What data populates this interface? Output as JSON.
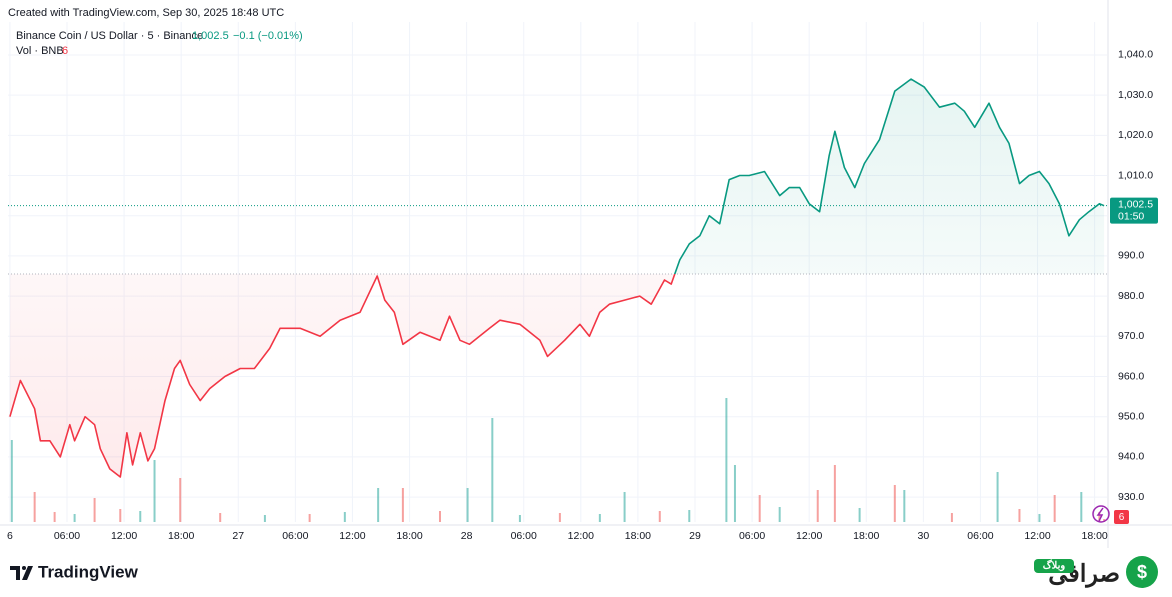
{
  "header": {
    "created": "Created with TradingView.com, Sep 30, 2025 18:48 UTC",
    "symbol": "Binance Coin / US Dollar · 5 · Binance",
    "price": "1,002.5",
    "change": "−0.1 (−0.01%)",
    "vol_label": "Vol · BNB",
    "vol_value": "6"
  },
  "chart_data": {
    "type": "baseline",
    "x": [
      0,
      1.1,
      2.6,
      3.2,
      4.2,
      5.3,
      6.3,
      6.8,
      7.9,
      8.9,
      9.5,
      10.5,
      11.6,
      12.3,
      12.9,
      13.7,
      14.5,
      15.2,
      16.3,
      17.3,
      17.9,
      18.9,
      20.0,
      21.0,
      22.6,
      24.2,
      25.7,
      27.3,
      28.4,
      30.5,
      32.6,
      34.7,
      36.8,
      38.6,
      39.4,
      40.4,
      41.3,
      43.1,
      45.2,
      46.2,
      47.3,
      48.3,
      50.4,
      51.5,
      53.6,
      55.7,
      56.5,
      58.3,
      59.9,
      60.9,
      62.0,
      63.0,
      64.6,
      66.2,
      67.4,
      68.8,
      69.5,
      70.4,
      71.4,
      72.5,
      73.5,
      74.6,
      75.6,
      76.7,
      77.7,
      79.3,
      80.9,
      81.9,
      83.0,
      84.0,
      85.1,
      86.1,
      86.7,
      87.7,
      88.8,
      89.8,
      91.4,
      93.0,
      94.7,
      96.1,
      97.7,
      99.3,
      100.3,
      101.4,
      102.9,
      104.0,
      105.0,
      106.1,
      107.1,
      108.2,
      109.2,
      110.3,
      111.3,
      112.4,
      113.4,
      114.5,
      115.0
    ],
    "values": [
      950,
      959,
      952,
      944,
      944,
      940,
      948,
      944,
      950,
      948,
      942,
      937,
      935,
      946,
      938,
      946,
      939,
      942,
      954,
      962,
      964,
      958,
      954,
      957,
      960,
      962,
      962,
      967,
      972,
      972,
      970,
      974,
      976,
      985,
      979,
      976,
      968,
      971,
      969,
      975,
      969,
      968,
      972,
      974,
      973,
      969,
      965,
      969,
      973,
      970,
      976,
      978,
      979,
      980,
      978,
      984,
      983,
      989,
      993,
      995,
      1000,
      998,
      1009,
      1010,
      1010,
      1011,
      1005,
      1007,
      1007,
      1003,
      1001,
      1015,
      1021,
      1012,
      1007,
      1013,
      1019,
      1031,
      1034,
      1032,
      1027,
      1028,
      1026,
      1022,
      1028,
      1022,
      1018,
      1008,
      1010,
      1011,
      1008,
      1003,
      995,
      999,
      1001,
      1003,
      1002.5
    ],
    "baseline": 985.5,
    "colors": {
      "up": "#089981",
      "down": "#f23645"
    },
    "xlim": [
      -0.2,
      115.3
    ],
    "ylim": [
      923.8,
      1048.2
    ],
    "xticks": [
      {
        "value": 0,
        "label": "6"
      },
      {
        "value": 6,
        "label": "06:00"
      },
      {
        "value": 12,
        "label": "12:00"
      },
      {
        "value": 18,
        "label": "18:00"
      },
      {
        "value": 24,
        "label": "27"
      },
      {
        "value": 30,
        "label": "06:00"
      },
      {
        "value": 36,
        "label": "12:00"
      },
      {
        "value": 42,
        "label": "18:00"
      },
      {
        "value": 48,
        "label": "28"
      },
      {
        "value": 54,
        "label": "06:00"
      },
      {
        "value": 60,
        "label": "12:00"
      },
      {
        "value": 66,
        "label": "18:00"
      },
      {
        "value": 72,
        "label": "29"
      },
      {
        "value": 78,
        "label": "06:00"
      },
      {
        "value": 84,
        "label": "12:00"
      },
      {
        "value": 90,
        "label": "18:00"
      },
      {
        "value": 96,
        "label": "30"
      },
      {
        "value": 102,
        "label": "06:00"
      },
      {
        "value": 108,
        "label": "12:00"
      },
      {
        "value": 114,
        "label": "18:00"
      }
    ],
    "yticks": [
      {
        "value": 930,
        "label": "930.0"
      },
      {
        "value": 940,
        "label": "940.0"
      },
      {
        "value": 950,
        "label": "950.0"
      },
      {
        "value": 960,
        "label": "960.0"
      },
      {
        "value": 970,
        "label": "970.0"
      },
      {
        "value": 980,
        "label": "980.0"
      },
      {
        "value": 990,
        "label": "990.0"
      },
      {
        "value": 1000,
        "label": "1,000.0"
      },
      {
        "value": 1010,
        "label": "1,010.0"
      },
      {
        "value": 1020,
        "label": "1,020.0"
      },
      {
        "value": 1030,
        "label": "1,030.0"
      },
      {
        "value": 1040,
        "label": "1,040.0"
      }
    ],
    "grid": true,
    "last": {
      "value": 1002.5,
      "label": "1,002.5",
      "countdown": "01:50"
    },
    "volume": {
      "ylim": [
        0,
        400
      ],
      "x": [
        0.2,
        2.6,
        8.9,
        15.2,
        17.9,
        38.7,
        41.3,
        48.1,
        50.7,
        64.6,
        75.3,
        76.2,
        78.8,
        84.9,
        86.7,
        93.0,
        94.0,
        103.8,
        109.8,
        112.6,
        4.7,
        6.8,
        11.6,
        13.7,
        22.1,
        26.8,
        31.5,
        35.2,
        45.2,
        53.6,
        57.8,
        62.0,
        68.3,
        71.4,
        80.9,
        89.3,
        99.0,
        106.1,
        108.2,
        114.5,
        115.0
      ],
      "values": [
        164,
        60,
        48,
        124,
        88,
        68,
        68,
        68,
        208,
        60,
        248,
        114,
        54,
        64,
        114,
        74,
        64,
        100,
        54,
        60,
        20,
        16,
        26,
        22,
        18,
        14,
        16,
        20,
        22,
        14,
        18,
        16,
        22,
        24,
        30,
        28,
        18,
        26,
        16,
        20,
        6
      ],
      "colors": [
        "#26a69a",
        "#ef5350",
        "#ef5350",
        "#26a69a",
        "#ef5350",
        "#26a69a",
        "#ef5350",
        "#26a69a",
        "#26a69a",
        "#26a69a",
        "#26a69a",
        "#26a69a",
        "#ef5350",
        "#ef5350",
        "#ef5350",
        "#ef5350",
        "#26a69a",
        "#26a69a",
        "#ef5350",
        "#26a69a",
        "#ef5350",
        "#26a69a",
        "#ef5350",
        "#26a69a",
        "#ef5350",
        "#26a69a",
        "#ef5350",
        "#26a69a",
        "#ef5350",
        "#26a69a",
        "#ef5350",
        "#26a69a",
        "#ef5350",
        "#26a69a",
        "#26a69a",
        "#26a69a",
        "#ef5350",
        "#ef5350",
        "#26a69a",
        "#ef5350",
        "#ef5350"
      ]
    },
    "volume_badge": "6"
  },
  "footer": {
    "logo": "TradingView",
    "watermark": "صرافی",
    "badge": "وبلاگ"
  }
}
